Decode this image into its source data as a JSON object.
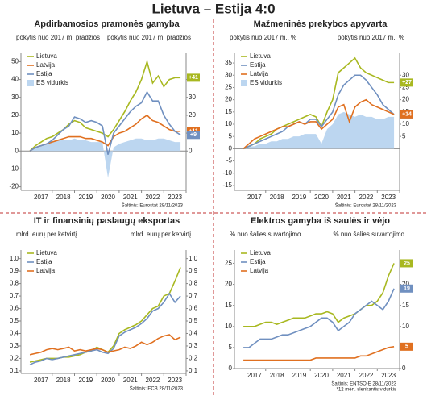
{
  "title": "Lietuva – Estija  4:0",
  "chart_data": [
    {
      "type": "line",
      "title": "Apdirbamosios pramonės gamyba",
      "ylabel": "pokytis nuo 2017 m. pradžios",
      "y2label": "pokytis nuo 2017 m. pradžios",
      "source": "Šaltinis: Eurostat 28/11/2023",
      "legend": "top-left",
      "x": [
        2017.0,
        2017.25,
        2017.5,
        2017.75,
        2018.0,
        2018.25,
        2018.5,
        2018.75,
        2019.0,
        2019.25,
        2019.5,
        2019.75,
        2020.0,
        2020.25,
        2020.5,
        2020.75,
        2021.0,
        2021.25,
        2021.5,
        2021.75,
        2022.0,
        2022.25,
        2022.5,
        2022.75,
        2023.0,
        2023.25,
        2023.5,
        2023.75
      ],
      "xlim": [
        2016.6,
        2024.0
      ],
      "xticks": [
        {
          "value": 2017.5,
          "label": "2017"
        },
        {
          "value": 2018.5,
          "label": "2018"
        },
        {
          "value": 2019.5,
          "label": "2019"
        },
        {
          "value": 2020.5,
          "label": "2020"
        },
        {
          "value": 2021.5,
          "label": "2021"
        },
        {
          "value": 2022.5,
          "label": "2022"
        },
        {
          "value": 2023.5,
          "label": "2023"
        }
      ],
      "ylim": [
        -22,
        52
      ],
      "yticks": [
        -20,
        -10,
        0,
        10,
        20,
        30,
        40,
        50
      ],
      "y2lim": [
        -22,
        52
      ],
      "y2ticks": [
        0,
        10,
        20,
        30,
        40
      ],
      "series": [
        {
          "name": "Lietuva",
          "color": "#a8b820",
          "badge": "+41",
          "values": [
            0,
            3,
            5,
            7,
            8,
            10,
            12,
            15,
            17,
            16,
            13,
            12,
            11,
            10,
            8,
            12,
            17,
            22,
            28,
            33,
            40,
            50,
            38,
            42,
            36,
            40,
            41,
            41
          ]
        },
        {
          "name": "Latvija",
          "color": "#e07020",
          "badge": "+11",
          "values": [
            0,
            2,
            3,
            4,
            5,
            6,
            7,
            8,
            8,
            8,
            7,
            7,
            6,
            5,
            3,
            8,
            10,
            11,
            13,
            15,
            18,
            20,
            17,
            16,
            14,
            12,
            11,
            11
          ]
        },
        {
          "name": "Estija",
          "color": "#7090c0",
          "badge": "+9",
          "values": [
            0,
            2,
            3,
            4,
            6,
            9,
            12,
            14,
            19,
            18,
            16,
            17,
            16,
            14,
            -2,
            10,
            14,
            18,
            22,
            25,
            27,
            33,
            28,
            28,
            20,
            15,
            11,
            9
          ]
        },
        {
          "name": "ES vidurkis",
          "color": "#bcd6f0",
          "style": "area",
          "axis": "y2",
          "values": [
            0,
            2,
            3,
            4,
            5,
            6,
            6,
            6,
            7,
            6,
            6,
            5,
            5,
            5,
            -15,
            2,
            4,
            5,
            6,
            7,
            7,
            6,
            6,
            7,
            7,
            6,
            5,
            5
          ]
        }
      ]
    },
    {
      "type": "line",
      "title": "Mažmeninės prekybos apyvarta",
      "ylabel": "pokytis nuo 2017 m., %",
      "y2label": "pokytis nuo 2017 m., %",
      "source": "Šaltinis: Eurostat 28/11/2023",
      "legend": "top-left",
      "x": [
        2017.0,
        2017.25,
        2017.5,
        2017.75,
        2018.0,
        2018.25,
        2018.5,
        2018.75,
        2019.0,
        2019.25,
        2019.5,
        2019.75,
        2020.0,
        2020.25,
        2020.5,
        2020.75,
        2021.0,
        2021.25,
        2021.5,
        2021.75,
        2022.0,
        2022.25,
        2022.5,
        2022.75,
        2023.0,
        2023.25,
        2023.5,
        2023.75
      ],
      "xlim": [
        2016.6,
        2024.0
      ],
      "xticks": [
        {
          "value": 2017.5,
          "label": "2017"
        },
        {
          "value": 2018.5,
          "label": "2018"
        },
        {
          "value": 2019.5,
          "label": "2019"
        },
        {
          "value": 2020.5,
          "label": "2020"
        },
        {
          "value": 2021.5,
          "label": "2021"
        },
        {
          "value": 2022.5,
          "label": "2022"
        },
        {
          "value": 2023.5,
          "label": "2023"
        }
      ],
      "ylim": [
        -17,
        37
      ],
      "yticks": [
        -15,
        -10,
        -5,
        0,
        5,
        10,
        15,
        20,
        25,
        30,
        35
      ],
      "y2lim": [
        -17,
        37
      ],
      "y2ticks": [
        5,
        10,
        15,
        20,
        25,
        30
      ],
      "series": [
        {
          "name": "Lietuva",
          "color": "#a8b820",
          "badge": "+27",
          "values": [
            0,
            1,
            2,
            4,
            5,
            6,
            8,
            9,
            10,
            11,
            12,
            13,
            14,
            13,
            9,
            15,
            20,
            31,
            33,
            35,
            37,
            33,
            31,
            30,
            29,
            28,
            27,
            27
          ]
        },
        {
          "name": "Estija",
          "color": "#7090c0",
          "badge": "+14",
          "values": [
            0,
            1,
            2,
            3,
            4,
            5,
            6,
            7,
            9,
            10,
            11,
            10,
            12,
            12,
            9,
            12,
            15,
            22,
            26,
            28,
            30,
            30,
            28,
            25,
            22,
            18,
            16,
            14
          ]
        },
        {
          "name": "Latvija",
          "color": "#e07020",
          "badge": "+14",
          "values": [
            0,
            2,
            4,
            5,
            6,
            7,
            8,
            9,
            9,
            10,
            11,
            10,
            11,
            11,
            8,
            10,
            12,
            17,
            18,
            11,
            17,
            19,
            20,
            18,
            17,
            16,
            15,
            14
          ]
        },
        {
          "name": "ES vidurkis",
          "color": "#bcd6f0",
          "style": "area",
          "axis": "y2",
          "values": [
            0,
            1,
            1,
            2,
            2,
            3,
            3,
            4,
            4,
            5,
            5,
            6,
            6,
            6,
            2,
            8,
            10,
            14,
            15,
            14,
            13,
            14,
            13,
            13,
            12,
            12,
            13,
            13
          ]
        }
      ]
    },
    {
      "type": "line",
      "title": "IT ir finansinių paslaugų eksportas",
      "ylabel": "mlrd. eurų per ketvirtį",
      "y2label": "mlrd. eurų per ketvirtį",
      "source": "Šaltinis: ECB 28/11/2023",
      "legend": "top-left",
      "x": [
        2017.0,
        2017.25,
        2017.5,
        2017.75,
        2018.0,
        2018.25,
        2018.5,
        2018.75,
        2019.0,
        2019.25,
        2019.5,
        2019.75,
        2020.0,
        2020.25,
        2020.5,
        2020.75,
        2021.0,
        2021.25,
        2021.5,
        2021.75,
        2022.0,
        2022.25,
        2022.5,
        2022.75,
        2023.0,
        2023.25,
        2023.5,
        2023.75
      ],
      "xlim": [
        2016.6,
        2024.0
      ],
      "xticks": [
        {
          "value": 2017.5,
          "label": "2017"
        },
        {
          "value": 2018.5,
          "label": "2018"
        },
        {
          "value": 2019.5,
          "label": "2019"
        },
        {
          "value": 2020.5,
          "label": "2020"
        },
        {
          "value": 2021.5,
          "label": "2021"
        },
        {
          "value": 2022.5,
          "label": "2022"
        },
        {
          "value": 2023.5,
          "label": "2023"
        }
      ],
      "ylim": [
        0.08,
        1.03
      ],
      "yticks": [
        0.1,
        0.2,
        0.3,
        0.4,
        0.5,
        0.6,
        0.7,
        0.8,
        0.9,
        {
          "value": 1,
          "label": "1.0"
        }
      ],
      "y2lim": [
        0.08,
        1.03
      ],
      "y2ticks": [
        0.1,
        0.2,
        0.3,
        0.4,
        0.5,
        0.6,
        0.7,
        0.8,
        0.9,
        {
          "value": 1,
          "label": "1.0"
        }
      ],
      "series": [
        {
          "name": "Lietuva",
          "color": "#a8b820",
          "values": [
            0.17,
            0.18,
            0.19,
            0.2,
            0.2,
            0.2,
            0.21,
            0.21,
            0.22,
            0.23,
            0.25,
            0.26,
            0.29,
            0.27,
            0.25,
            0.3,
            0.4,
            0.43,
            0.45,
            0.47,
            0.5,
            0.55,
            0.6,
            0.62,
            0.7,
            0.72,
            0.82,
            0.93
          ]
        },
        {
          "name": "Estija",
          "color": "#7090c0",
          "values": [
            0.15,
            0.17,
            0.18,
            0.2,
            0.19,
            0.2,
            0.21,
            0.22,
            0.23,
            0.24,
            0.25,
            0.26,
            0.27,
            0.25,
            0.24,
            0.28,
            0.38,
            0.41,
            0.43,
            0.45,
            0.48,
            0.52,
            0.58,
            0.6,
            0.65,
            0.72,
            0.65,
            0.7
          ]
        },
        {
          "name": "Latvija",
          "color": "#e07020",
          "values": [
            0.23,
            0.24,
            0.25,
            0.27,
            0.28,
            0.27,
            0.28,
            0.29,
            0.26,
            0.27,
            0.26,
            0.27,
            0.28,
            0.27,
            0.25,
            0.26,
            0.27,
            0.29,
            0.28,
            0.3,
            0.33,
            0.31,
            0.33,
            0.36,
            0.38,
            0.39,
            0.35,
            0.37
          ]
        }
      ]
    },
    {
      "type": "line",
      "title": "Elektros gamyba iš saulės ir vėjo",
      "ylabel": "% nuo šalies suvartojimo",
      "y2label": "% nuo šalies suvartojimo",
      "source": "Šaltinis: ENTSO-E 28/11/2023",
      "note": "*12 mėn. slenkantis vidurkis",
      "legend": "top-left",
      "x": [
        2017.0,
        2017.25,
        2017.5,
        2017.75,
        2018.0,
        2018.25,
        2018.5,
        2018.75,
        2019.0,
        2019.25,
        2019.5,
        2019.75,
        2020.0,
        2020.25,
        2020.5,
        2020.75,
        2021.0,
        2021.25,
        2021.5,
        2021.75,
        2022.0,
        2022.25,
        2022.5,
        2022.75,
        2023.0,
        2023.25,
        2023.5,
        2023.75
      ],
      "xlim": [
        2016.6,
        2024.0
      ],
      "xticks": [
        {
          "value": 2017.5,
          "label": "2017"
        },
        {
          "value": 2018.5,
          "label": "2018"
        },
        {
          "value": 2019.5,
          "label": "2019"
        },
        {
          "value": 2020.5,
          "label": "2020"
        },
        {
          "value": 2021.5,
          "label": "2021"
        },
        {
          "value": 2022.5,
          "label": "2022"
        },
        {
          "value": 2023.5,
          "label": "2023"
        }
      ],
      "ylim": [
        0,
        27
      ],
      "yticks": [
        0,
        5,
        10,
        15,
        20,
        25
      ],
      "y2lim": [
        0,
        27
      ],
      "y2ticks": [
        0,
        5,
        10,
        15,
        20,
        25
      ],
      "series": [
        {
          "name": "Lietuva",
          "color": "#a8b820",
          "badge": "25",
          "values": [
            10,
            10,
            10,
            10.5,
            11,
            11,
            10.5,
            11,
            11.5,
            12,
            12,
            12,
            12.5,
            13,
            13,
            13.5,
            13,
            11,
            12,
            12.5,
            13,
            14,
            15,
            15,
            16,
            18,
            22,
            25
          ]
        },
        {
          "name": "Estija",
          "color": "#7090c0",
          "badge": "19",
          "values": [
            5,
            5,
            6,
            7,
            7,
            7,
            7.5,
            8,
            8,
            8.5,
            9,
            9.5,
            10,
            11,
            12,
            12,
            11,
            9,
            10,
            11,
            13,
            14,
            15,
            16,
            15,
            14,
            16,
            19
          ]
        },
        {
          "name": "Latvija",
          "color": "#e07020",
          "badge": "5",
          "values": [
            2,
            2,
            2,
            2,
            2,
            2,
            2,
            2,
            2,
            2,
            2,
            2,
            2,
            2.5,
            2.5,
            2.5,
            2.5,
            2.5,
            2.5,
            2.5,
            2.5,
            3,
            3,
            3.5,
            4,
            4.5,
            5,
            5.2
          ]
        }
      ]
    }
  ]
}
